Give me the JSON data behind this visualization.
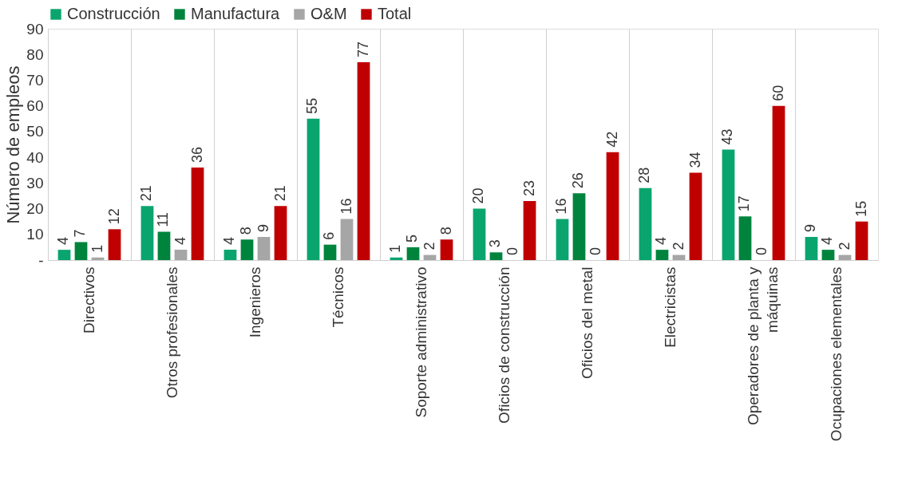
{
  "chart_data": {
    "type": "bar",
    "ylabel": "Número de empleos",
    "categories": [
      "Directivos",
      "Otros profesionales",
      "Ingenieros",
      "Técnicos",
      "Soporte administrativo",
      "Oficios de construcción",
      "Oficios del metal",
      "Electricistas",
      "Operadores de planta y máquinas",
      "Ocupaciones elementales"
    ],
    "series": [
      {
        "name": "Construcción",
        "color": "#0aa56e",
        "values": [
          4,
          21,
          4,
          55,
          1,
          20,
          16,
          28,
          43,
          9
        ]
      },
      {
        "name": "Manufactura",
        "color": "#00843d",
        "values": [
          7,
          11,
          8,
          6,
          5,
          3,
          26,
          4,
          17,
          4
        ]
      },
      {
        "name": "O&M",
        "color": "#a6a6a6",
        "values": [
          1,
          4,
          9,
          16,
          2,
          0,
          0,
          2,
          0,
          2
        ]
      },
      {
        "name": "Total",
        "color": "#c00000",
        "values": [
          12,
          36,
          21,
          77,
          8,
          23,
          42,
          34,
          60,
          15
        ]
      }
    ],
    "ylim": [
      0,
      90
    ],
    "yticks": [
      {
        "value": 0,
        "label": "-"
      },
      10,
      20,
      30,
      40,
      50,
      60,
      70,
      80,
      90
    ],
    "data_labels": true,
    "grid": "x",
    "legend": "top left"
  }
}
